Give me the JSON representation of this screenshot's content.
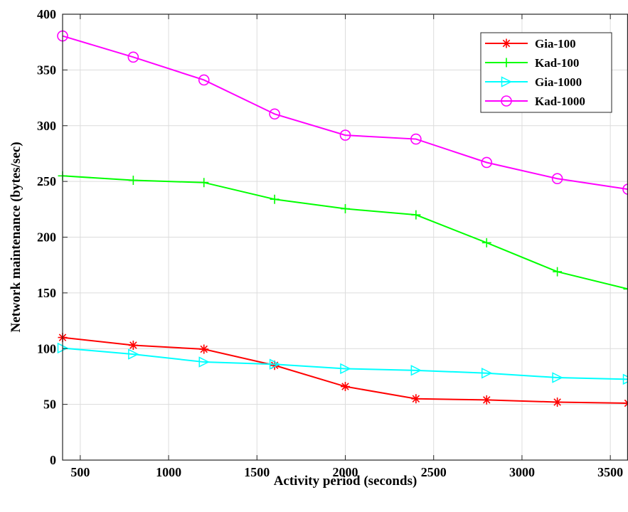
{
  "chart_data": {
    "type": "line",
    "title": "",
    "xlabel": "Activity period (seconds)",
    "ylabel": "Network maintenance (bytes/sec)",
    "xlim": [
      400,
      3600
    ],
    "ylim": [
      0,
      400
    ],
    "xticks": [
      500,
      1000,
      1500,
      2000,
      2500,
      3000,
      3500
    ],
    "yticks": [
      0,
      50,
      100,
      150,
      200,
      250,
      300,
      350,
      400
    ],
    "grid": true,
    "legend_position": "top-right",
    "x": [
      400,
      800,
      1200,
      1600,
      2000,
      2400,
      2800,
      3200,
      3600
    ],
    "series": [
      {
        "name": "Gia-100",
        "color": "#ff0000",
        "marker": "asterisk",
        "values": [
          110,
          103,
          99.5,
          85,
          66,
          55,
          54,
          52,
          51
        ]
      },
      {
        "name": "Kad-100",
        "color": "#00ff00",
        "marker": "plus",
        "values": [
          255,
          251,
          249,
          234,
          225.5,
          220,
          195,
          169,
          153.5
        ]
      },
      {
        "name": "Gia-1000",
        "color": "#00ffff",
        "marker": "triangle-right",
        "values": [
          100.5,
          95,
          88,
          86,
          82,
          80.5,
          78,
          74,
          72.5
        ]
      },
      {
        "name": "Kad-1000",
        "color": "#ff00ff",
        "marker": "circle",
        "values": [
          380.5,
          361.5,
          341,
          310.5,
          291.5,
          288,
          267,
          252.5,
          243
        ]
      }
    ]
  }
}
